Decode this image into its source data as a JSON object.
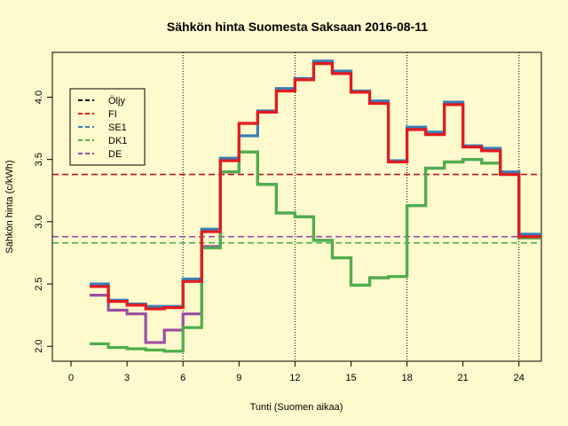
{
  "chart_data": {
    "type": "line",
    "title": "Sähkön hinta Suomesta Saksaan 2016-08-11",
    "xlabel": "Tunti (Suomen aikaa)",
    "ylabel": "Sähkön hinta (c/kWh)",
    "xlim": [
      -1,
      25.2
    ],
    "ylim": [
      1.88,
      4.36
    ],
    "x_ticks": [
      0,
      3,
      6,
      9,
      12,
      15,
      18,
      21,
      24
    ],
    "y_ticks": [
      2.0,
      2.5,
      3.0,
      3.5,
      4.0
    ],
    "vlines": [
      6,
      12,
      18,
      24
    ],
    "legend_position": "top-left",
    "legend": [
      {
        "name": "Öljy",
        "color": "#000000"
      },
      {
        "name": "FI",
        "color": "#e41a1c"
      },
      {
        "name": "SE1",
        "color": "#377eb8"
      },
      {
        "name": "DK1",
        "color": "#4daf4a"
      },
      {
        "name": "DE",
        "color": "#984ea3"
      }
    ],
    "hlines": [
      {
        "name": "Öljy",
        "value": 3.38,
        "color": "#b2182b"
      },
      {
        "name": "DE",
        "value": 2.88,
        "color": "#984ea3"
      },
      {
        "name": "DK1",
        "value": 2.83,
        "color": "#4daf4a"
      }
    ],
    "x": [
      1,
      2,
      3,
      4,
      5,
      6,
      7,
      8,
      9,
      10,
      11,
      12,
      13,
      14,
      15,
      16,
      17,
      18,
      19,
      20,
      21,
      22,
      23,
      24,
      25
    ],
    "series": [
      {
        "name": "DE",
        "color": "#984ea3",
        "values": [
          2.41,
          2.29,
          2.26,
          2.03,
          2.13,
          2.26,
          2.8,
          3.4,
          3.56,
          3.3,
          3.07,
          3.04,
          2.85,
          2.71,
          2.49,
          2.55,
          2.56,
          3.13,
          3.43,
          3.48,
          3.5,
          3.47,
          3.38,
          2.87,
          2.87
        ]
      },
      {
        "name": "DK1",
        "color": "#4daf4a",
        "values": [
          2.02,
          1.99,
          1.98,
          1.97,
          1.96,
          2.15,
          2.79,
          3.4,
          3.56,
          3.3,
          3.07,
          3.04,
          2.85,
          2.71,
          2.49,
          2.55,
          2.56,
          3.13,
          3.43,
          3.48,
          3.5,
          3.47,
          3.38,
          2.87,
          2.87
        ]
      },
      {
        "name": "SE1",
        "color": "#377eb8",
        "values": [
          2.5,
          2.37,
          2.34,
          2.32,
          2.32,
          2.54,
          2.94,
          3.51,
          3.69,
          3.89,
          4.07,
          4.15,
          4.29,
          4.21,
          4.05,
          3.97,
          3.49,
          3.76,
          3.72,
          3.96,
          3.61,
          3.59,
          3.4,
          2.9,
          2.9
        ]
      },
      {
        "name": "FI",
        "color": "#e41a1c",
        "values": [
          2.48,
          2.36,
          2.33,
          2.3,
          2.31,
          2.52,
          2.92,
          3.49,
          3.79,
          3.88,
          4.05,
          4.14,
          4.27,
          4.19,
          4.04,
          3.95,
          3.48,
          3.74,
          3.7,
          3.94,
          3.6,
          3.57,
          3.38,
          2.88,
          2.88
        ]
      }
    ]
  }
}
